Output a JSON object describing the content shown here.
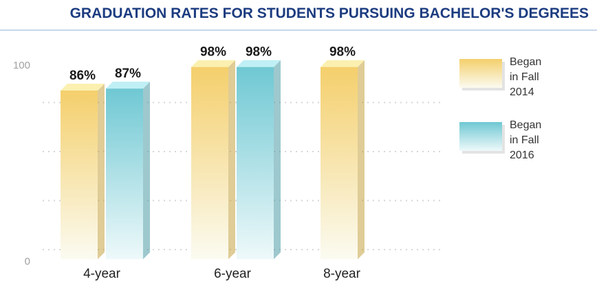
{
  "chart_data": {
    "type": "bar",
    "title": "GRADUATION RATES FOR STUDENTS PURSUING BACHELOR'S DEGREES",
    "categories": [
      "4-year",
      "6-year",
      "8-year"
    ],
    "series": [
      {
        "name": "Began in Fall 2014",
        "legend_lines": [
          "Began",
          "in Fall",
          "2014"
        ],
        "values": [
          86,
          98,
          98
        ],
        "labels": [
          "86%",
          "98%",
          "98%"
        ],
        "color_top": "#f4cf6c",
        "color_bottom": "#fbfbf1"
      },
      {
        "name": "Began in Fall 2016",
        "legend_lines": [
          "Began",
          "in Fall",
          "2016"
        ],
        "values": [
          87,
          98,
          null
        ],
        "labels": [
          "87%",
          "98%",
          ""
        ],
        "color_top": "#6fc8d3",
        "color_bottom": "#eef9fa"
      }
    ],
    "ylim": [
      0,
      100
    ],
    "yticks": [
      "0",
      "100"
    ],
    "xlabel": "",
    "ylabel": "",
    "grid": true,
    "legend_position": "right"
  }
}
